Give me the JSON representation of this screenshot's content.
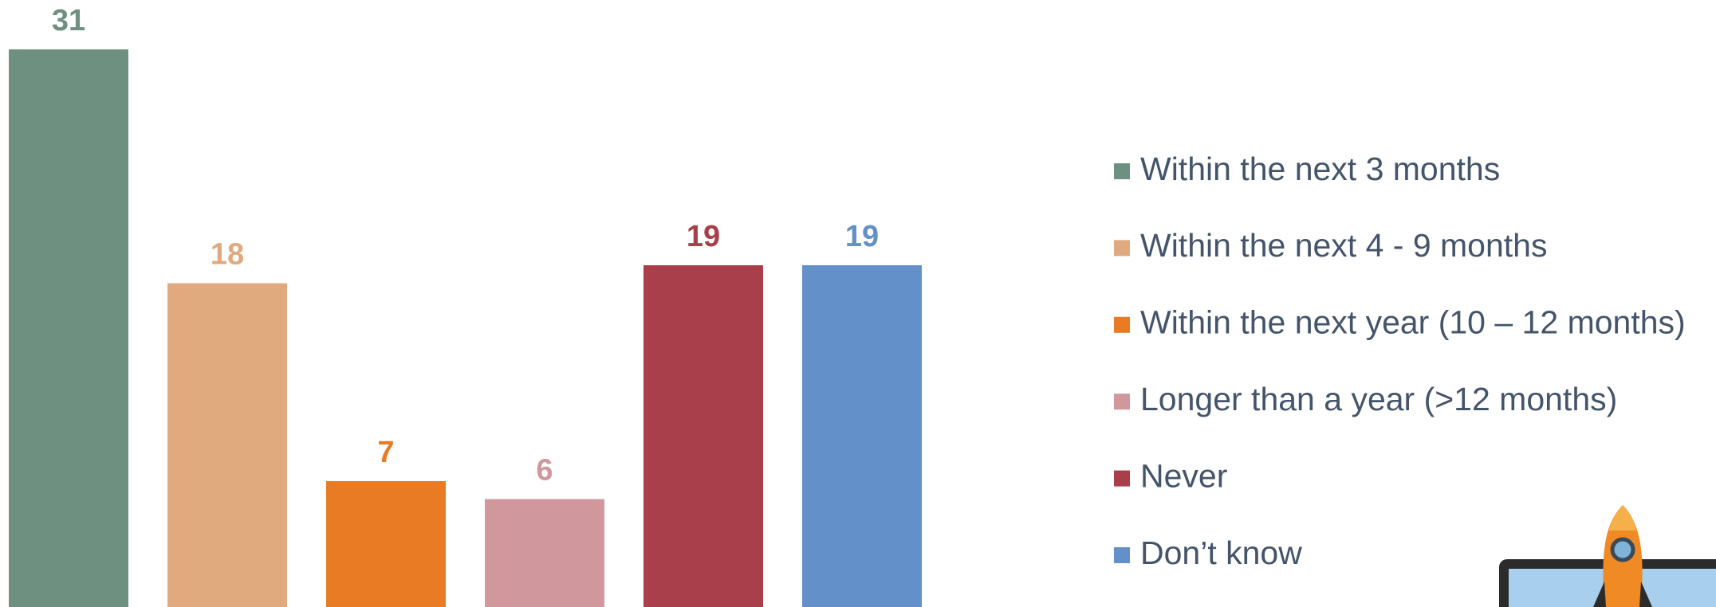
{
  "chart_data": {
    "type": "bar",
    "categories": [
      "Within the next 3 months",
      "Within the next 4 - 9 months",
      "Within the next year (10 – 12 months)",
      "Longer than a year (>12 months)",
      "Never",
      "Don’t know"
    ],
    "values": [
      31,
      18,
      7,
      6,
      19,
      19
    ],
    "colors": [
      "#6e9080",
      "#e0a97e",
      "#e87b24",
      "#d0979d",
      "#a83f4a",
      "#6390c8"
    ],
    "legend": "right"
  }
}
